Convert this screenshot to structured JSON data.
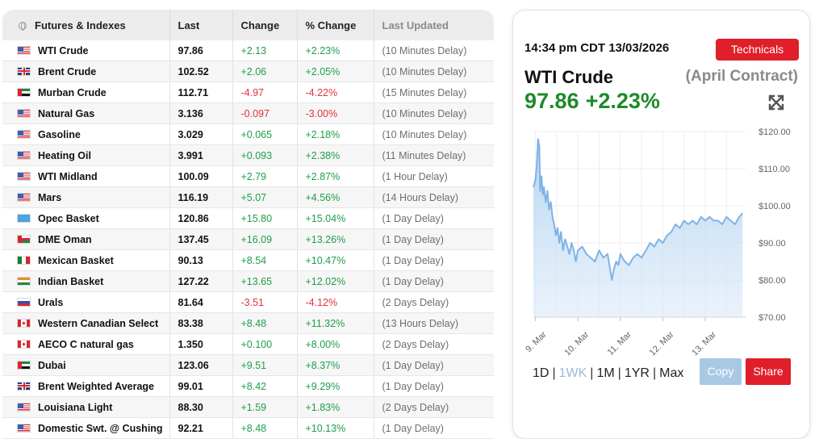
{
  "table": {
    "headers": {
      "name": "Futures & Indexes",
      "last": "Last",
      "change": "Change",
      "pct": "% Change",
      "updated": "Last Updated"
    },
    "rows": [
      {
        "flag": "us",
        "name": "WTI Crude",
        "last": "97.86",
        "change": "+2.13",
        "pct": "+2.23%",
        "updated": "(10 Minutes Delay)"
      },
      {
        "flag": "gb",
        "name": "Brent Crude",
        "last": "102.52",
        "change": "+2.06",
        "pct": "+2.05%",
        "updated": "(10 Minutes Delay)"
      },
      {
        "flag": "ae",
        "name": "Murban Crude",
        "last": "112.71",
        "change": "-4.97",
        "pct": "-4.22%",
        "updated": "(15 Minutes Delay)"
      },
      {
        "flag": "us",
        "name": "Natural Gas",
        "last": "3.136",
        "change": "-0.097",
        "pct": "-3.00%",
        "updated": "(10 Minutes Delay)"
      },
      {
        "flag": "us",
        "name": "Gasoline",
        "last": "3.029",
        "change": "+0.065",
        "pct": "+2.18%",
        "updated": "(10 Minutes Delay)"
      },
      {
        "flag": "us",
        "name": "Heating Oil",
        "last": "3.991",
        "change": "+0.093",
        "pct": "+2.38%",
        "updated": "(11 Minutes Delay)"
      },
      {
        "flag": "us",
        "name": "WTI Midland",
        "last": "100.09",
        "change": "+2.79",
        "pct": "+2.87%",
        "updated": "(1 Hour Delay)"
      },
      {
        "flag": "us",
        "name": "Mars",
        "last": "116.19",
        "change": "+5.07",
        "pct": "+4.56%",
        "updated": "(14 Hours Delay)"
      },
      {
        "flag": "un",
        "name": "Opec Basket",
        "last": "120.86",
        "change": "+15.80",
        "pct": "+15.04%",
        "updated": "(1 Day Delay)"
      },
      {
        "flag": "om",
        "name": "DME Oman",
        "last": "137.45",
        "change": "+16.09",
        "pct": "+13.26%",
        "updated": "(1 Day Delay)"
      },
      {
        "flag": "mx",
        "name": "Mexican Basket",
        "last": "90.13",
        "change": "+8.54",
        "pct": "+10.47%",
        "updated": "(1 Day Delay)"
      },
      {
        "flag": "in",
        "name": "Indian Basket",
        "last": "127.22",
        "change": "+13.65",
        "pct": "+12.02%",
        "updated": "(1 Day Delay)"
      },
      {
        "flag": "ru",
        "name": "Urals",
        "last": "81.64",
        "change": "-3.51",
        "pct": "-4.12%",
        "updated": "(2 Days Delay)"
      },
      {
        "flag": "ca",
        "name": "Western Canadian Select",
        "last": "83.38",
        "change": "+8.48",
        "pct": "+11.32%",
        "updated": "(13 Hours Delay)"
      },
      {
        "flag": "ca",
        "name": "AECO C natural gas",
        "last": "1.350",
        "change": "+0.100",
        "pct": "+8.00%",
        "updated": "(2 Days Delay)"
      },
      {
        "flag": "ae",
        "name": "Dubai",
        "last": "123.06",
        "change": "+9.51",
        "pct": "+8.37%",
        "updated": "(1 Day Delay)"
      },
      {
        "flag": "gb",
        "name": "Brent Weighted Average",
        "last": "99.01",
        "change": "+8.42",
        "pct": "+9.29%",
        "updated": "(1 Day Delay)"
      },
      {
        "flag": "us",
        "name": "Louisiana Light",
        "last": "88.30",
        "change": "+1.59",
        "pct": "+1.83%",
        "updated": "(2 Days Delay)"
      },
      {
        "flag": "us",
        "name": "Domestic Swt. @ Cushing",
        "last": "92.21",
        "change": "+8.48",
        "pct": "+10.13%",
        "updated": "(1 Day Delay)"
      }
    ]
  },
  "detail": {
    "timestamp": "14:34 pm CDT 13/03/2026",
    "technicals_label": "Technicals",
    "name": "WTI Crude",
    "contract": "(April Contract)",
    "price": "97.86",
    "pct_change": "+2.23%",
    "ranges": [
      "1D",
      "1WK",
      "1M",
      "1YR",
      "Max"
    ],
    "active_range": "1WK",
    "copy_label": "Copy",
    "share_label": "Share",
    "colors": {
      "up": "#1e8a2a",
      "down": "#e0323a",
      "accent": "#e01f2a",
      "line": "#7eb3e6"
    }
  },
  "chart_data": {
    "type": "area",
    "title": "",
    "xlabel": "",
    "ylabel": "",
    "ylim": [
      70,
      120
    ],
    "yticks": [
      "$120.00",
      "$110.00",
      "$100.00",
      "$90.00",
      "$80.00",
      "$70.00"
    ],
    "yticks_values": [
      120,
      110,
      100,
      90,
      80,
      70
    ],
    "xticks": [
      "9. Mar",
      "10. Mar",
      "11. Mar",
      "12. Mar",
      "13. Mar"
    ],
    "xticks_values": [
      0,
      1,
      2,
      3,
      4
    ],
    "grid": true,
    "series": [
      {
        "x": [
          -0.05,
          0.0,
          0.03,
          0.06,
          0.09,
          0.11,
          0.14,
          0.17,
          0.2,
          0.24,
          0.28,
          0.32,
          0.36,
          0.4,
          0.44,
          0.48,
          0.52,
          0.56,
          0.6,
          0.65,
          0.7,
          0.75,
          0.8,
          0.85,
          0.9,
          0.95,
          1.0,
          1.1,
          1.2,
          1.3,
          1.4,
          1.5,
          1.6,
          1.7,
          1.8,
          1.85,
          1.9,
          1.95,
          2.0,
          2.1,
          2.2,
          2.3,
          2.4,
          2.5,
          2.6,
          2.7,
          2.8,
          2.9,
          3.0,
          3.1,
          3.2,
          3.3,
          3.4,
          3.5,
          3.6,
          3.7,
          3.8,
          3.9,
          4.0,
          4.1,
          4.2,
          4.3,
          4.4,
          4.5,
          4.6,
          4.7,
          4.8,
          4.88
        ],
        "y": [
          105,
          107,
          111,
          118,
          116,
          104,
          108,
          103,
          105,
          101,
          104,
          99,
          101,
          97,
          95,
          92,
          94,
          90,
          93,
          88,
          91,
          89,
          87,
          90,
          88,
          85,
          88,
          89,
          87,
          86,
          85,
          88,
          86,
          87,
          80,
          83,
          85,
          84,
          87,
          85,
          84,
          86,
          87,
          86,
          88,
          90,
          89,
          91,
          90,
          92,
          93,
          95,
          94,
          96,
          95,
          96,
          95,
          97,
          96,
          97,
          96,
          96,
          95,
          97,
          96,
          95,
          97,
          98
        ]
      }
    ]
  }
}
